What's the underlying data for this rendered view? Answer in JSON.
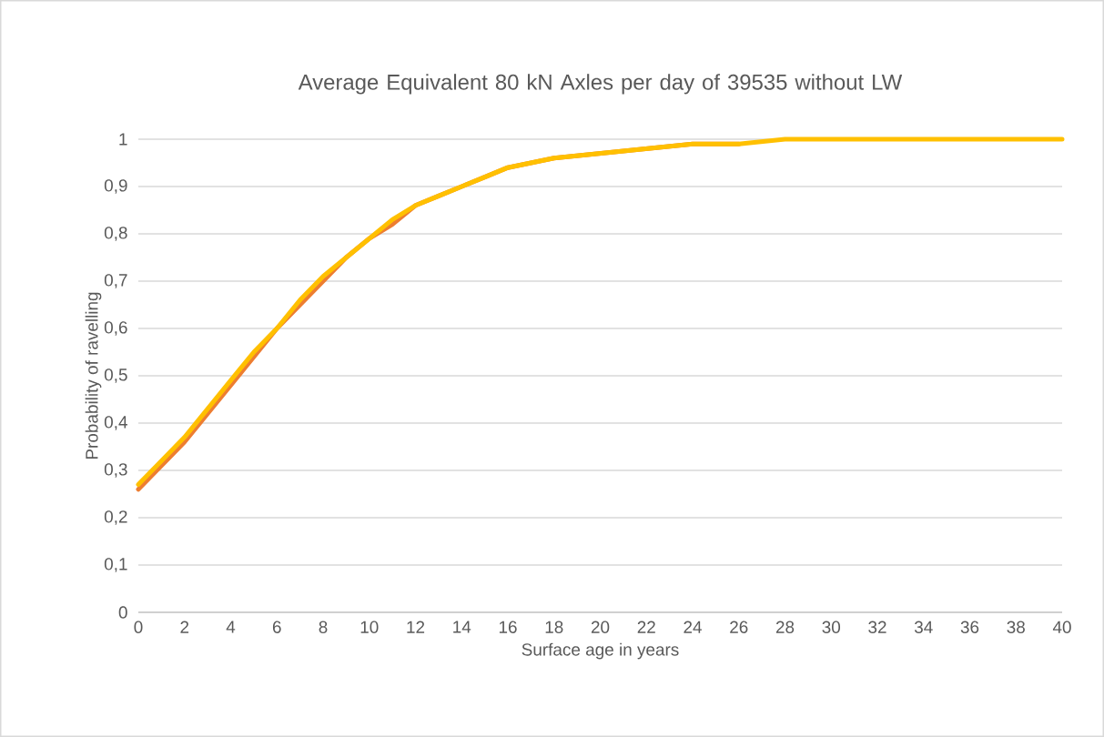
{
  "chart_data": {
    "type": "line",
    "title": "Average Equivalent 80 kN Axles per day of 39535 without LW",
    "xlabel": "Surface age in years",
    "ylabel": "Probability of ravelling",
    "x": [
      0,
      1,
      2,
      3,
      4,
      5,
      6,
      7,
      8,
      9,
      10,
      11,
      12,
      13,
      14,
      15,
      16,
      18,
      20,
      22,
      24,
      26,
      28,
      30,
      32,
      36,
      40
    ],
    "series": [
      {
        "color": "#ed7d31",
        "values": [
          0.26,
          0.31,
          0.36,
          0.42,
          0.48,
          0.54,
          0.6,
          0.65,
          0.7,
          0.75,
          0.79,
          0.82,
          0.86,
          0.88,
          0.9,
          0.92,
          0.94,
          0.96,
          0.97,
          0.98,
          0.99,
          0.99,
          null,
          null,
          null,
          null,
          null
        ]
      },
      {
        "color": "#ffc000",
        "values": [
          0.27,
          0.32,
          0.37,
          0.43,
          0.49,
          0.55,
          0.6,
          0.66,
          0.71,
          0.75,
          0.79,
          0.83,
          0.86,
          0.88,
          0.9,
          0.92,
          0.94,
          0.96,
          0.97,
          0.98,
          0.99,
          0.99,
          1.0,
          1.0,
          1.0,
          1.0,
          1.0
        ]
      }
    ],
    "xlim": [
      0,
      40
    ],
    "xticks": [
      0,
      2,
      4,
      6,
      8,
      10,
      12,
      14,
      16,
      18,
      20,
      22,
      24,
      26,
      28,
      30,
      32,
      34,
      36,
      38,
      40
    ],
    "ylim": [
      0,
      1
    ],
    "yticks": [
      0,
      {
        "value": 0.1,
        "label": "0,1"
      },
      {
        "value": 0.2,
        "label": "0,2"
      },
      {
        "value": 0.3,
        "label": "0,3"
      },
      {
        "value": 0.4,
        "label": "0,4"
      },
      {
        "value": 0.5,
        "label": "0,5"
      },
      {
        "value": 0.6,
        "label": "0,6"
      },
      {
        "value": 0.7,
        "label": "0,7"
      },
      {
        "value": 0.8,
        "label": "0,8"
      },
      {
        "value": 0.9,
        "label": "0,9"
      },
      1
    ],
    "grid": "y",
    "marker": "none",
    "line_style": "solid"
  }
}
